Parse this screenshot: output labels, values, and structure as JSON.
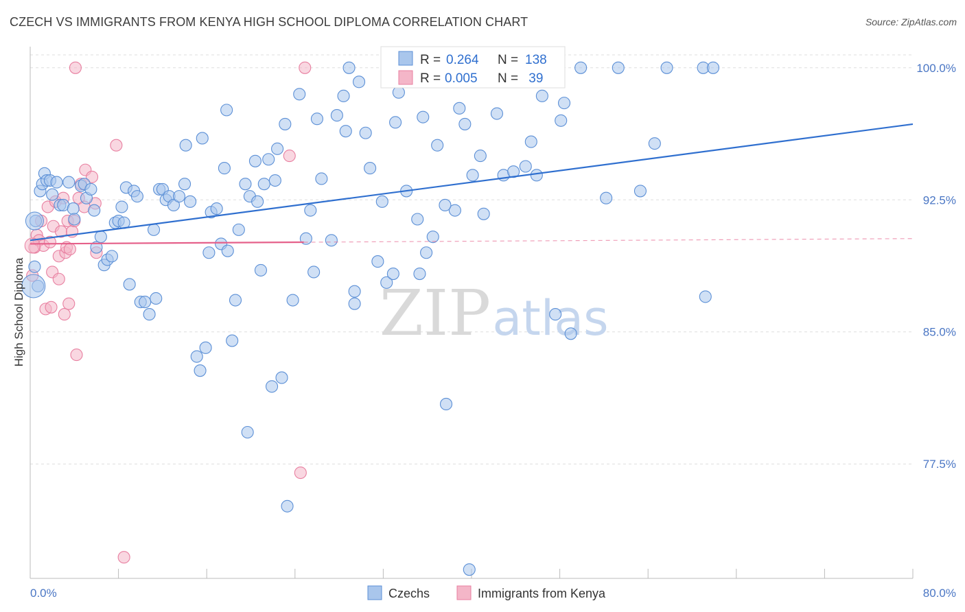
{
  "title": "CZECH VS IMMIGRANTS FROM KENYA HIGH SCHOOL DIPLOMA CORRELATION CHART",
  "source": "Source: ZipAtlas.com",
  "watermark": {
    "zip": "ZIP",
    "atlas": "atlas"
  },
  "colors": {
    "blue_fill": "#a9c6ec",
    "blue_stroke": "#5b8fd6",
    "blue_line": "#2f6fcf",
    "pink_fill": "#f4b6c8",
    "pink_stroke": "#e87fa0",
    "pink_line": "#e5608a",
    "accent_text": "#4a76c4",
    "grid": "#dddddd"
  },
  "legend": {
    "r_label": "R =",
    "n_label": "N =",
    "rows": [
      {
        "series": "Czechs",
        "r": "0.264",
        "n": "138"
      },
      {
        "series": "Immigrants from Kenya",
        "r": "0.005",
        "n": " 39"
      }
    ]
  },
  "chart_data": {
    "type": "scatter",
    "title": "CZECH VS IMMIGRANTS FROM KENYA HIGH SCHOOL DIPLOMA CORRELATION CHART",
    "xlabel": "",
    "ylabel": "High School Diploma",
    "xlim": [
      0,
      80
    ],
    "ylim": [
      71,
      101.2
    ],
    "x_tick_labels": [
      "0.0%",
      "80.0%"
    ],
    "y_ticks": [
      77.5,
      85.0,
      92.5,
      100.0
    ],
    "y_tick_labels": [
      "77.5%",
      "85.0%",
      "92.5%",
      "100.0%"
    ],
    "grid": "dashed horizontal",
    "legend_position": "top-center",
    "series": [
      {
        "name": "Czechs",
        "trend": {
          "x": [
            0,
            80
          ],
          "y": [
            90.2,
            96.8
          ]
        },
        "points": [
          [
            0.4,
            88.7
          ],
          [
            0.5,
            91.3
          ],
          [
            0.7,
            87.6
          ],
          [
            0.9,
            93.0
          ],
          [
            1.1,
            93.4
          ],
          [
            1.3,
            94.0
          ],
          [
            1.5,
            93.6
          ],
          [
            1.8,
            93.6
          ],
          [
            2.0,
            92.8
          ],
          [
            2.4,
            93.5
          ],
          [
            2.7,
            92.2
          ],
          [
            3.0,
            92.2
          ],
          [
            3.5,
            93.5
          ],
          [
            3.9,
            92.0
          ],
          [
            4.0,
            91.4
          ],
          [
            4.6,
            93.3
          ],
          [
            4.9,
            93.4
          ],
          [
            5.1,
            92.6
          ],
          [
            5.5,
            93.1
          ],
          [
            5.8,
            91.9
          ],
          [
            6.0,
            89.8
          ],
          [
            6.4,
            90.4
          ],
          [
            6.7,
            88.8
          ],
          [
            7.0,
            89.1
          ],
          [
            7.4,
            89.3
          ],
          [
            7.7,
            91.2
          ],
          [
            8.0,
            91.3
          ],
          [
            8.3,
            92.1
          ],
          [
            8.5,
            91.2
          ],
          [
            8.7,
            93.2
          ],
          [
            9.0,
            87.7
          ],
          [
            9.4,
            93.0
          ],
          [
            9.7,
            92.7
          ],
          [
            10.0,
            86.7
          ],
          [
            10.4,
            86.7
          ],
          [
            10.8,
            86.0
          ],
          [
            11.2,
            90.8
          ],
          [
            11.4,
            86.9
          ],
          [
            11.7,
            93.1
          ],
          [
            12.0,
            93.1
          ],
          [
            12.3,
            92.5
          ],
          [
            12.6,
            92.7
          ],
          [
            13.0,
            92.2
          ],
          [
            13.5,
            92.7
          ],
          [
            14.0,
            93.4
          ],
          [
            14.5,
            92.4
          ],
          [
            14.1,
            95.6
          ],
          [
            15.1,
            83.6
          ],
          [
            15.4,
            82.8
          ],
          [
            15.6,
            96.0
          ],
          [
            15.9,
            84.1
          ],
          [
            16.2,
            89.5
          ],
          [
            16.4,
            91.8
          ],
          [
            16.9,
            92.0
          ],
          [
            17.3,
            90.0
          ],
          [
            17.6,
            94.3
          ],
          [
            17.8,
            97.6
          ],
          [
            17.9,
            89.6
          ],
          [
            18.3,
            84.5
          ],
          [
            18.6,
            86.8
          ],
          [
            18.9,
            90.8
          ],
          [
            19.5,
            93.4
          ],
          [
            19.7,
            79.3
          ],
          [
            19.9,
            92.7
          ],
          [
            20.4,
            94.7
          ],
          [
            20.6,
            92.4
          ],
          [
            20.9,
            88.5
          ],
          [
            21.2,
            93.4
          ],
          [
            21.6,
            94.8
          ],
          [
            21.9,
            81.9
          ],
          [
            22.4,
            95.4
          ],
          [
            22.2,
            93.6
          ],
          [
            22.8,
            82.4
          ],
          [
            23.3,
            75.1
          ],
          [
            23.1,
            96.8
          ],
          [
            23.8,
            86.8
          ],
          [
            24.4,
            98.5
          ],
          [
            25.0,
            90.3
          ],
          [
            25.4,
            91.9
          ],
          [
            25.7,
            88.4
          ],
          [
            26.0,
            97.1
          ],
          [
            26.4,
            93.7
          ],
          [
            27.3,
            90.2
          ],
          [
            27.8,
            97.3
          ],
          [
            28.4,
            98.4
          ],
          [
            28.6,
            96.4
          ],
          [
            28.9,
            100.0
          ],
          [
            29.4,
            87.3
          ],
          [
            29.4,
            86.6
          ],
          [
            29.8,
            99.2
          ],
          [
            30.4,
            96.3
          ],
          [
            30.8,
            94.3
          ],
          [
            31.5,
            89.0
          ],
          [
            31.9,
            92.4
          ],
          [
            32.3,
            87.8
          ],
          [
            32.9,
            88.3
          ],
          [
            33.1,
            96.9
          ],
          [
            33.4,
            98.6
          ],
          [
            34.1,
            93.0
          ],
          [
            34.6,
            99.2
          ],
          [
            35.1,
            91.4
          ],
          [
            35.3,
            88.3
          ],
          [
            35.6,
            97.2
          ],
          [
            35.9,
            89.5
          ],
          [
            36.5,
            90.4
          ],
          [
            36.9,
            95.6
          ],
          [
            37.5,
            100.0
          ],
          [
            38.5,
            91.9
          ],
          [
            38.9,
            97.7
          ],
          [
            39.4,
            96.8
          ],
          [
            40.1,
            93.9
          ],
          [
            40.8,
            95.0
          ],
          [
            41.1,
            91.7
          ],
          [
            42.3,
            97.4
          ],
          [
            42.9,
            93.9
          ],
          [
            43.8,
            94.1
          ],
          [
            44.4,
            100.0
          ],
          [
            44.9,
            94.4
          ],
          [
            45.4,
            95.8
          ],
          [
            45.9,
            93.9
          ],
          [
            46.4,
            98.4
          ],
          [
            47.6,
            86.0
          ],
          [
            48.1,
            97.0
          ],
          [
            48.4,
            98.0
          ],
          [
            49.0,
            84.9
          ],
          [
            49.9,
            100.0
          ],
          [
            52.2,
            92.6
          ],
          [
            53.3,
            100.0
          ],
          [
            55.3,
            93.0
          ],
          [
            56.6,
            95.7
          ],
          [
            57.7,
            100.0
          ],
          [
            61.0,
            100.0
          ],
          [
            61.2,
            87.0
          ],
          [
            61.9,
            100.0
          ],
          [
            34.7,
            99.3
          ],
          [
            37.6,
            92.2
          ],
          [
            39.8,
            71.5
          ],
          [
            37.7,
            80.9
          ]
        ]
      },
      {
        "name": "Immigrants from Kenya",
        "trend": {
          "x": [
            0,
            80
          ],
          "y": [
            90.0,
            90.3
          ]
        },
        "trend_solid_to_x": 24.8,
        "points": [
          [
            0.2,
            88.2
          ],
          [
            0.4,
            89.8
          ],
          [
            0.6,
            90.5
          ],
          [
            0.8,
            90.2
          ],
          [
            1.0,
            91.3
          ],
          [
            1.2,
            89.9
          ],
          [
            1.4,
            86.3
          ],
          [
            1.6,
            92.1
          ],
          [
            1.8,
            90.1
          ],
          [
            1.9,
            86.4
          ],
          [
            2.0,
            88.4
          ],
          [
            2.1,
            91.0
          ],
          [
            2.3,
            92.4
          ],
          [
            2.6,
            89.3
          ],
          [
            2.6,
            88.0
          ],
          [
            2.8,
            90.7
          ],
          [
            3.0,
            92.6
          ],
          [
            3.1,
            86.0
          ],
          [
            3.2,
            89.5
          ],
          [
            3.3,
            89.8
          ],
          [
            3.4,
            91.3
          ],
          [
            3.5,
            86.6
          ],
          [
            3.6,
            89.7
          ],
          [
            3.8,
            90.7
          ],
          [
            4.0,
            91.3
          ],
          [
            4.2,
            83.7
          ],
          [
            4.4,
            92.6
          ],
          [
            4.6,
            93.4
          ],
          [
            4.9,
            92.1
          ],
          [
            5.0,
            94.2
          ],
          [
            5.6,
            93.8
          ],
          [
            5.9,
            92.3
          ],
          [
            6.0,
            89.5
          ],
          [
            4.1,
            100.0
          ],
          [
            7.8,
            95.6
          ],
          [
            8.5,
            72.2
          ],
          [
            23.5,
            95.0
          ],
          [
            24.5,
            77.0
          ],
          [
            24.9,
            100.0
          ]
        ]
      }
    ]
  }
}
